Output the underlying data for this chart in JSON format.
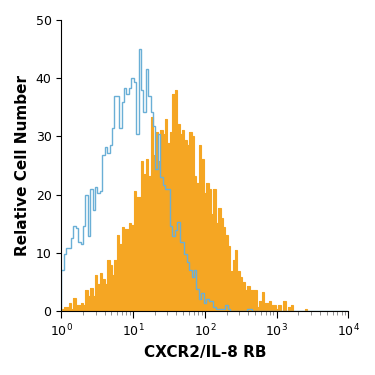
{
  "title": "",
  "xlabel": "CXCR2/IL-8 RB",
  "ylabel": "Relative Cell Number",
  "xlim_log": [
    1,
    10000
  ],
  "ylim": [
    0,
    50
  ],
  "yticks": [
    0,
    10,
    20,
    30,
    40,
    50
  ],
  "blue_color": "#6aafd6",
  "orange_color": "#F5A623",
  "figsize": [
    3.75,
    3.75
  ],
  "dpi": 100,
  "blue_peak_y": 45,
  "orange_peak_y": 38,
  "blue_log_mean": 1.0,
  "blue_log_std": 0.42,
  "orange_log_mean": 1.58,
  "orange_log_std": 0.52,
  "n_blue": 3500,
  "n_orange": 3500,
  "n_bins": 120,
  "seed": 42
}
